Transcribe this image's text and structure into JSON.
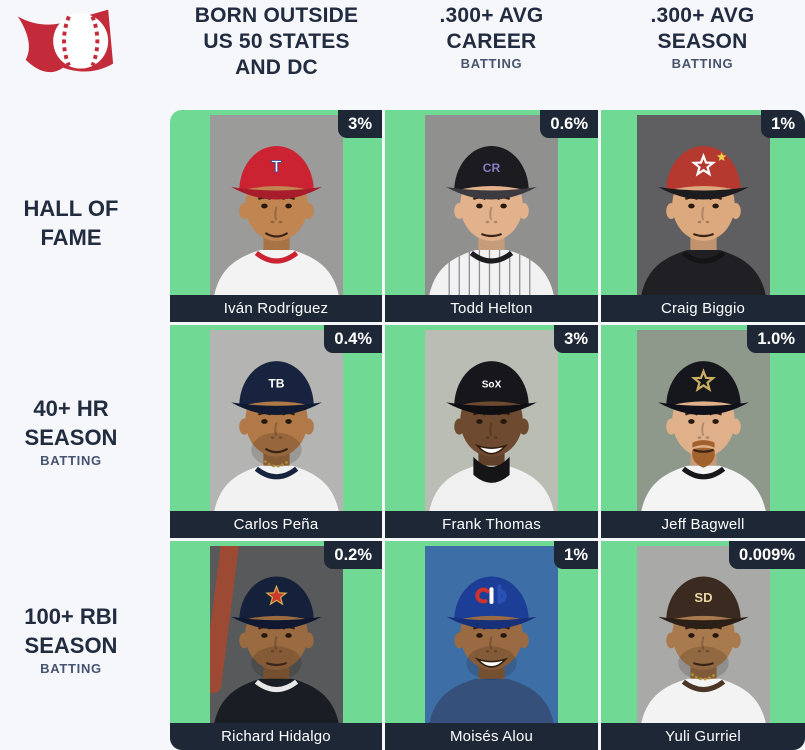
{
  "app": {
    "logo_icon": "baseball-pennant-logo",
    "logo_red": "#c32b3a"
  },
  "colors": {
    "page_bg": "#f6f7fa",
    "cell_green": "#70d994",
    "bar_navy": "#1e2736",
    "header_text": "#222c40",
    "subheader_text": "#475470"
  },
  "columns": [
    {
      "line1": "BORN OUTSIDE",
      "line2": "US 50 STATES",
      "line3": "AND DC"
    },
    {
      "line1": ".300+ AVG",
      "line2": "CAREER",
      "tag": "BATTING"
    },
    {
      "line1": ".300+ AVG",
      "line2": "SEASON",
      "tag": "BATTING"
    }
  ],
  "rows": [
    {
      "line1": "HALL OF",
      "line2": "FAME"
    },
    {
      "line1": "40+ HR",
      "line2": "SEASON",
      "tag": "BATTING"
    },
    {
      "line1": "100+ RBI",
      "line2": "SEASON",
      "tag": "BATTING"
    }
  ],
  "cells": [
    {
      "name": "Iván Rodríguez",
      "pct": "3%",
      "portrait": {
        "bg": "#9b9b99",
        "cap": "#cc2332",
        "brim": "#a81d2b",
        "skin": "#c08550",
        "jersey": "#f3f3f3",
        "collar": "#cc2332",
        "logo": {
          "kind": "text",
          "text": "T",
          "fill": "#ffffff",
          "stroke": "#274a9a",
          "size": 17
        },
        "mouth": "slight"
      }
    },
    {
      "name": "Todd Helton",
      "pct": "0.6%",
      "portrait": {
        "bg": "#90908e",
        "cap": "#1b1b20",
        "brim": "#3a3a40",
        "skin": "#e2b28c",
        "jersey": "#f2f2f2",
        "collar": "#1b1b20",
        "pinstripe": true,
        "logo": {
          "kind": "text",
          "text": "CR",
          "fill": "#8b7cc0",
          "size": 12
        },
        "mouth": "flat"
      }
    },
    {
      "name": "Craig Biggio",
      "pct": "1%",
      "portrait": {
        "bg": "#5f5f61",
        "cap": "#b5392f",
        "brim": "#1c1c1e",
        "skin": "#dca87e",
        "jersey": "#202024",
        "collar": "#141416",
        "logo": {
          "kind": "star-open",
          "stroke": "#ffffff",
          "spark": "#eed34f"
        },
        "mouth": "flat"
      }
    },
    {
      "name": "Carlos Peña",
      "pct": "0.4%",
      "portrait": {
        "bg": "#b4b4b2",
        "cap": "#17233f",
        "brim": "#101a30",
        "skin": "#b07947",
        "jersey": "#f2f2f2",
        "collar": "#17233f",
        "necklace": "#c9a44a",
        "logo": {
          "kind": "text",
          "text": "TB",
          "fill": "#ffffff",
          "size": 12
        },
        "mouth": "slight",
        "facial": "stubble"
      }
    },
    {
      "name": "Frank Thomas",
      "pct": "3%",
      "portrait": {
        "bg": "#b9bdb3",
        "cap": "#17171b",
        "brim": "#0f0f13",
        "skin": "#6e4a30",
        "jersey": "#f0f0f0",
        "undershirt": "#151518",
        "logo": {
          "kind": "text",
          "text": "SoX",
          "fill": "#ffffff",
          "size": 10
        },
        "mouth": "open"
      }
    },
    {
      "name": "Jeff Bagwell",
      "pct": "1.0%",
      "portrait": {
        "bg": "#8e998b",
        "cap": "#16161d",
        "brim": "#10101a",
        "skin": "#e0b08a",
        "jersey": "#f4f4f4",
        "collar": "#17171c",
        "logo": {
          "kind": "star-open",
          "stroke": "#c9b05e"
        },
        "mouth": "flat",
        "facial": "goatee",
        "facialColor": "#a2622e"
      }
    },
    {
      "name": "Richard Hidalgo",
      "pct": "0.2%",
      "portrait": {
        "bg": "#57595b",
        "cap": "#15203b",
        "brim": "#0f1830",
        "skin": "#9a6a40",
        "jersey": "#191d24",
        "collar": "#e8e8e8",
        "bat": "#9c4a33",
        "logo": {
          "kind": "star-filled",
          "fill": "#c93a2e",
          "stroke": "#d8b04e"
        },
        "mouth": "flat",
        "facial": "stubble"
      }
    },
    {
      "name": "Moisés Alou",
      "pct": "1%",
      "portrait": {
        "bg": "#3d6fa6",
        "cap": "#1d3e96",
        "brim": "#16307a",
        "skin": "#9a6a43",
        "jersey": "#35507a",
        "logo": {
          "kind": "expos"
        },
        "mouth": "open",
        "facial": "stubble"
      }
    },
    {
      "name": "Yuli Gurriel",
      "pct": "0.009%",
      "portrait": {
        "bg": "#a9a9a7",
        "cap": "#3a2a20",
        "brim": "#2b1f17",
        "skin": "#a97a4e",
        "jersey": "#f3f3f3",
        "collar": "#4a3526",
        "necklace": "#d4aa3c",
        "logo": {
          "kind": "text",
          "text": "SD",
          "fill": "#e9d6a4",
          "size": 13
        },
        "mouth": "flat",
        "facial": "stubble"
      }
    }
  ]
}
